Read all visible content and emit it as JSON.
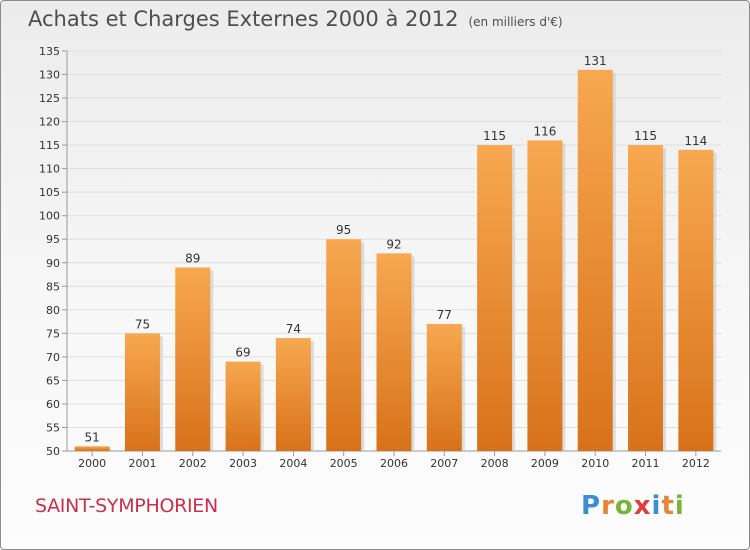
{
  "header": {
    "title": "Achats et Charges Externes 2000 à 2012",
    "unit": "(en milliers d'€)"
  },
  "footer": {
    "place": "SAINT-SYMPHORIEN",
    "logo": "Proxiti"
  },
  "colors": {
    "bar_light": "#f7a850",
    "bar_dark": "#d8721a",
    "place_text": "#c9304a",
    "logo_letters": [
      "#3b8fd1",
      "#e8833a",
      "#7ab33c",
      "#e23b3b",
      "#3b8fd1",
      "#e8833a",
      "#7ab33c"
    ]
  },
  "chart_data": {
    "type": "bar",
    "title": "Achats et Charges Externes 2000 à 2012",
    "subtitle": "(en milliers d'€)",
    "categories": [
      "2000",
      "2001",
      "2002",
      "2003",
      "2004",
      "2005",
      "2006",
      "2007",
      "2008",
      "2009",
      "2010",
      "2011",
      "2012"
    ],
    "values": [
      51,
      75,
      89,
      69,
      74,
      95,
      92,
      77,
      115,
      116,
      131,
      115,
      114
    ],
    "ylim": [
      50,
      135
    ],
    "yticks": [
      50,
      55,
      60,
      65,
      70,
      75,
      80,
      85,
      90,
      95,
      100,
      105,
      110,
      115,
      120,
      125,
      130,
      135
    ],
    "grid": true,
    "xlabel": "",
    "ylabel": ""
  }
}
